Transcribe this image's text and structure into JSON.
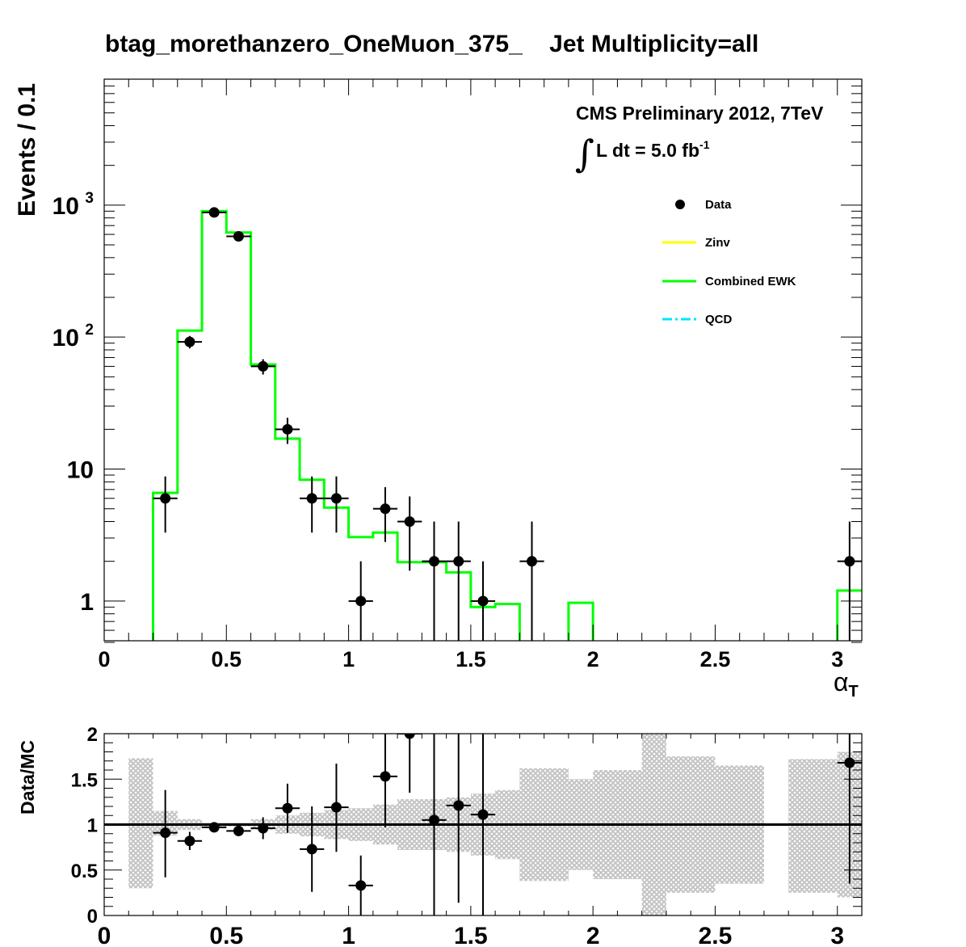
{
  "colors": {
    "data": "#000000",
    "zinv": "#ffff00",
    "ewk": "#00ff00",
    "qcd": "#00e5ff",
    "band": "#c8c8c8"
  },
  "text": {
    "title": "btag_morethanzero_OneMuon_375_    Jet Multiplicity=all",
    "ylabel": "Events / 0.1",
    "xlabel": "α",
    "xlabel_sub": "T",
    "ratio_ylabel": "Data/MC",
    "cms_line1": "CMS Preliminary 2012, 7TeV",
    "cms_integral": "∫",
    "cms_line2": "L dt = 5.0 fb",
    "cms_line2_sup": "-1"
  },
  "chart_data": [
    {
      "type": "line",
      "panel": "main",
      "title": "btag_morethanzero_OneMuon_375_    Jet Multiplicity=all",
      "xlabel": "α_T",
      "ylabel": "Events / 0.1",
      "xlim": [
        0,
        3.1
      ],
      "ylim": [
        0.5,
        9000
      ],
      "yscale": "log",
      "xticks": [
        "0",
        "0.5",
        "1",
        "1.5",
        "2",
        "2.5",
        "3"
      ],
      "yticks": [
        {
          "value": 1,
          "label": "1"
        },
        {
          "value": 10,
          "label": "10"
        },
        {
          "value": 100,
          "label": "10",
          "sup": "2"
        },
        {
          "value": 1000,
          "label": "10",
          "sup": "3"
        }
      ],
      "legend": {
        "placement": "top-right",
        "entries": [
          {
            "name": "Data",
            "style": "marker"
          },
          {
            "name": "Zinv",
            "style": "line"
          },
          {
            "name": "Combined EWK",
            "style": "line"
          },
          {
            "name": "QCD",
            "style": "dashdot"
          }
        ]
      },
      "bin_edges": [
        0,
        0.1,
        0.2,
        0.3,
        0.4,
        0.5,
        0.6,
        0.7,
        0.8,
        0.9,
        1.0,
        1.1,
        1.2,
        1.3,
        1.4,
        1.5,
        1.6,
        1.7,
        1.8,
        1.9,
        2.0,
        2.1,
        2.2,
        2.3,
        2.4,
        2.5,
        2.6,
        2.7,
        2.8,
        2.9,
        3.0,
        3.1
      ],
      "series": [
        {
          "name": "Combined EWK",
          "style": "step",
          "values": [
            0,
            0,
            6.6,
            112,
            900,
            620,
            62,
            17,
            8.3,
            5.1,
            3.05,
            3.3,
            1.97,
            1.97,
            1.65,
            0.9,
            0.95,
            0,
            0,
            0.97,
            0,
            0,
            0,
            0,
            0,
            0,
            0,
            0,
            0,
            0,
            1.2
          ]
        },
        {
          "name": "Zinv",
          "style": "step",
          "values": [
            0,
            0,
            0,
            0,
            0,
            0,
            0,
            0,
            0,
            0,
            0,
            0,
            0,
            0,
            0,
            0,
            0,
            0,
            0,
            0,
            0,
            0,
            0,
            0,
            0,
            0,
            0,
            0,
            0,
            0,
            0
          ]
        },
        {
          "name": "Data",
          "style": "points",
          "points": [
            {
              "x": 0.25,
              "y": 6,
              "ylo": 3.3,
              "yhi": 8.8
            },
            {
              "x": 0.35,
              "y": 92,
              "ylo": 82,
              "yhi": 102
            },
            {
              "x": 0.45,
              "y": 880,
              "ylo": 850,
              "yhi": 910
            },
            {
              "x": 0.55,
              "y": 580,
              "ylo": 555,
              "yhi": 605
            },
            {
              "x": 0.65,
              "y": 60,
              "ylo": 52,
              "yhi": 68
            },
            {
              "x": 0.75,
              "y": 20,
              "ylo": 15.5,
              "yhi": 24.5
            },
            {
              "x": 0.85,
              "y": 6,
              "ylo": 3.3,
              "yhi": 8.8
            },
            {
              "x": 0.95,
              "y": 6,
              "ylo": 3.3,
              "yhi": 8.8
            },
            {
              "x": 1.05,
              "y": 1,
              "ylo": 0.5,
              "yhi": 2.0
            },
            {
              "x": 1.15,
              "y": 5,
              "ylo": 2.8,
              "yhi": 7.3
            },
            {
              "x": 1.25,
              "y": 4,
              "ylo": 1.7,
              "yhi": 6.2
            },
            {
              "x": 1.35,
              "y": 2,
              "ylo": 0.5,
              "yhi": 4.0
            },
            {
              "x": 1.45,
              "y": 2,
              "ylo": 0.5,
              "yhi": 4.0
            },
            {
              "x": 1.55,
              "y": 1,
              "ylo": 0.5,
              "yhi": 2.0
            },
            {
              "x": 1.75,
              "y": 2,
              "ylo": 0.5,
              "yhi": 4.0
            },
            {
              "x": 3.05,
              "y": 2,
              "ylo": 0.5,
              "yhi": 4.0
            }
          ]
        }
      ]
    },
    {
      "type": "scatter",
      "panel": "ratio",
      "ylabel": "Data/MC",
      "xlim": [
        0,
        3.1
      ],
      "ylim": [
        0,
        2
      ],
      "xticks": [
        "0",
        "0.5",
        "1",
        "1.5",
        "2",
        "2.5",
        "3"
      ],
      "yticks": [
        "0",
        "0.5",
        "1",
        "1.5",
        "2"
      ],
      "reference_line": 1,
      "uncertainty_band": [
        {
          "x0": 0.1,
          "x1": 0.2,
          "lo": 0.3,
          "hi": 1.73
        },
        {
          "x0": 0.2,
          "x1": 0.3,
          "lo": 0.88,
          "hi": 1.15
        },
        {
          "x0": 0.3,
          "x1": 0.4,
          "lo": 0.94,
          "hi": 1.06
        },
        {
          "x0": 0.4,
          "x1": 0.5,
          "lo": 0.98,
          "hi": 1.02
        },
        {
          "x0": 0.5,
          "x1": 0.6,
          "lo": 0.98,
          "hi": 1.02
        },
        {
          "x0": 0.6,
          "x1": 0.7,
          "lo": 0.94,
          "hi": 1.06
        },
        {
          "x0": 0.7,
          "x1": 0.8,
          "lo": 0.9,
          "hi": 1.1
        },
        {
          "x0": 0.8,
          "x1": 0.9,
          "lo": 0.87,
          "hi": 1.13
        },
        {
          "x0": 0.9,
          "x1": 1.0,
          "lo": 0.84,
          "hi": 1.16
        },
        {
          "x0": 1.0,
          "x1": 1.1,
          "lo": 0.82,
          "hi": 1.18
        },
        {
          "x0": 1.1,
          "x1": 1.2,
          "lo": 0.78,
          "hi": 1.22
        },
        {
          "x0": 1.2,
          "x1": 1.3,
          "lo": 0.72,
          "hi": 1.28
        },
        {
          "x0": 1.3,
          "x1": 1.4,
          "lo": 0.72,
          "hi": 1.28
        },
        {
          "x0": 1.4,
          "x1": 1.5,
          "lo": 0.7,
          "hi": 1.3
        },
        {
          "x0": 1.5,
          "x1": 1.6,
          "lo": 0.66,
          "hi": 1.34
        },
        {
          "x0": 1.6,
          "x1": 1.7,
          "lo": 0.62,
          "hi": 1.38
        },
        {
          "x0": 1.7,
          "x1": 1.9,
          "lo": 0.38,
          "hi": 1.62
        },
        {
          "x0": 1.9,
          "x1": 2.0,
          "lo": 0.5,
          "hi": 1.5
        },
        {
          "x0": 2.0,
          "x1": 2.2,
          "lo": 0.4,
          "hi": 1.6
        },
        {
          "x0": 2.2,
          "x1": 2.3,
          "lo": 0.0,
          "hi": 2.0
        },
        {
          "x0": 2.3,
          "x1": 2.5,
          "lo": 0.25,
          "hi": 1.75
        },
        {
          "x0": 2.5,
          "x1": 2.7,
          "lo": 0.35,
          "hi": 1.65
        },
        {
          "x0": 2.8,
          "x1": 3.0,
          "lo": 0.25,
          "hi": 1.72
        },
        {
          "x0": 3.0,
          "x1": 3.1,
          "lo": 0.2,
          "hi": 1.8
        }
      ],
      "points": [
        {
          "x": 0.25,
          "y": 0.91,
          "ylo": 0.42,
          "yhi": 1.38
        },
        {
          "x": 0.35,
          "y": 0.82,
          "ylo": 0.72,
          "yhi": 0.92
        },
        {
          "x": 0.45,
          "y": 0.97,
          "ylo": 0.94,
          "yhi": 1.0
        },
        {
          "x": 0.55,
          "y": 0.93,
          "ylo": 0.89,
          "yhi": 0.97
        },
        {
          "x": 0.65,
          "y": 0.96,
          "ylo": 0.84,
          "yhi": 1.08
        },
        {
          "x": 0.75,
          "y": 1.18,
          "ylo": 0.91,
          "yhi": 1.45
        },
        {
          "x": 0.85,
          "y": 0.73,
          "ylo": 0.26,
          "yhi": 1.2
        },
        {
          "x": 0.95,
          "y": 1.19,
          "ylo": 0.7,
          "yhi": 1.67
        },
        {
          "x": 1.05,
          "y": 0.33,
          "ylo": 0.0,
          "yhi": 0.66
        },
        {
          "x": 1.15,
          "y": 1.53,
          "ylo": 0.97,
          "yhi": 2.0
        },
        {
          "x": 1.25,
          "y": 2.0,
          "ylo": 1.35,
          "yhi": 2.0
        },
        {
          "x": 1.35,
          "y": 1.05,
          "ylo": 0.0,
          "yhi": 2.0
        },
        {
          "x": 1.45,
          "y": 1.21,
          "ylo": 0.14,
          "yhi": 2.0
        },
        {
          "x": 1.55,
          "y": 1.11,
          "ylo": 0.0,
          "yhi": 2.0
        },
        {
          "x": 3.05,
          "y": 1.68,
          "ylo": 0.35,
          "yhi": 2.0
        }
      ]
    }
  ]
}
